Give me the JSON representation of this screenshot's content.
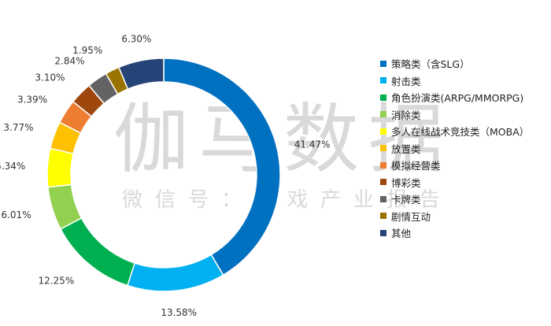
{
  "watermark": {
    "main": "伽马数据",
    "sub": "微信号：游戏产业报告"
  },
  "chart_data": {
    "type": "pie",
    "donut": true,
    "legend_position": "right",
    "series": [
      {
        "name": "策略类（含SLG）",
        "value": 41.47,
        "label": "41.47%",
        "color": "#0070c0"
      },
      {
        "name": "射击类",
        "value": 13.58,
        "label": "13.58%",
        "color": "#00b0f0"
      },
      {
        "name": "角色扮演类(ARPG/MMORPG)",
        "value": 12.25,
        "label": "12.25%",
        "color": "#00b050"
      },
      {
        "name": "消除类",
        "value": 6.01,
        "label": "6.01%",
        "color": "#92d050"
      },
      {
        "name": "多人在线战术竞技类（MOBA）",
        "value": 5.34,
        "label": "5.34%",
        "color": "#ffff00"
      },
      {
        "name": "放置类",
        "value": 3.77,
        "label": "3.77%",
        "color": "#ffc000"
      },
      {
        "name": "模拟经营类",
        "value": 3.39,
        "label": "3.39%",
        "color": "#ed7d31"
      },
      {
        "name": "博彩类",
        "value": 3.1,
        "label": "3.10%",
        "color": "#9e480e"
      },
      {
        "name": "卡牌类",
        "value": 2.84,
        "label": "2.84%",
        "color": "#636363"
      },
      {
        "name": "剧情互动",
        "value": 1.95,
        "label": "1.95%",
        "color": "#997300"
      },
      {
        "name": "其他",
        "value": 6.3,
        "label": "6.30%",
        "color": "#264478"
      }
    ]
  }
}
